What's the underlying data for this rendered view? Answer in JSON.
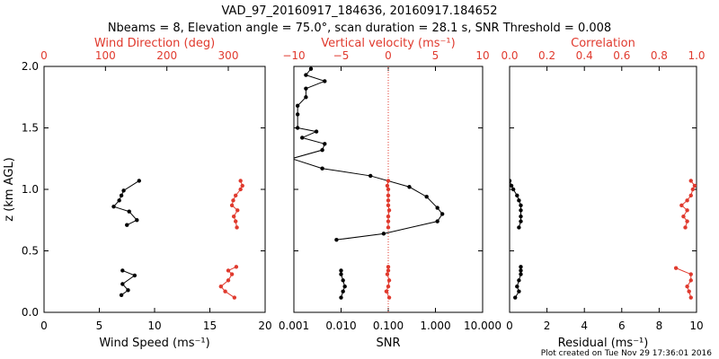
{
  "header": {
    "title_line1": "VAD_97_20160917_184636, 20160917.184652",
    "title_line2": "Nbeams = 8, Elevation angle = 75.0°, scan duration = 28.1 s, SNR Threshold = 0.008"
  },
  "footer": "Plot created on Tue Nov 29 17:36:01 2016",
  "colors": {
    "primary": "#000000",
    "secondary": "#e03a2e"
  },
  "chart_data": [
    {
      "type": "scatter",
      "ylabel": "z (km AGL)",
      "ylim": [
        0,
        2
      ],
      "yticks": [
        "0.0",
        "0.5",
        "1.0",
        "1.5",
        "2.0"
      ],
      "xlabel_bottom": "Wind Speed (ms⁻¹)",
      "xlim_bottom": [
        0,
        20
      ],
      "xticks_bottom": [
        "0",
        "5",
        "10",
        "15",
        "20"
      ],
      "xlabel_top": "Wind Direction (deg)",
      "xlim_top": [
        0,
        360
      ],
      "xticks_top": [
        "0",
        "100",
        "200",
        "300"
      ],
      "series": [
        {
          "axis": "bottom",
          "color": "#000000",
          "segments": [
            [
              [
                7.0,
                0.14
              ],
              [
                7.6,
                0.18
              ],
              [
                7.1,
                0.23
              ],
              [
                8.2,
                0.3
              ],
              [
                7.1,
                0.34
              ]
            ],
            [
              [
                7.5,
                0.71
              ],
              [
                8.4,
                0.75
              ],
              [
                7.7,
                0.82
              ],
              [
                6.3,
                0.86
              ],
              [
                6.8,
                0.91
              ],
              [
                7.0,
                0.95
              ],
              [
                7.2,
                0.99
              ],
              [
                8.6,
                1.07
              ]
            ]
          ]
        },
        {
          "axis": "top",
          "color": "#e03a2e",
          "segments": [
            [
              [
                310,
                0.12
              ],
              [
                295,
                0.17
              ],
              [
                288,
                0.21
              ],
              [
                300,
                0.26
              ],
              [
                306,
                0.31
              ],
              [
                300,
                0.34
              ],
              [
                313,
                0.37
              ]
            ],
            [
              [
                314,
                0.69
              ],
              [
                312,
                0.74
              ],
              [
                309,
                0.78
              ],
              [
                315,
                0.83
              ],
              [
                306,
                0.87
              ],
              [
                308,
                0.91
              ],
              [
                312,
                0.95
              ],
              [
                320,
                1.0
              ],
              [
                323,
                1.03
              ],
              [
                320,
                1.07
              ]
            ]
          ]
        }
      ]
    },
    {
      "type": "scatter",
      "xlabel_bottom": "SNR",
      "xscale_bottom": "log",
      "xlim_bottom": [
        0.001,
        10
      ],
      "xticks_bottom": [
        "0.001",
        "0.010",
        "0.100",
        "1.000",
        "10.000"
      ],
      "xlabel_top": "Vertical velocity (ms⁻¹)",
      "xlim_top": [
        -10,
        10
      ],
      "xticks_top": [
        "-10",
        "-5",
        "0",
        "5",
        "10"
      ],
      "vline_top": 0,
      "series": [
        {
          "axis": "bottom",
          "color": "#000000",
          "segments": [
            [
              [
                0.01,
                0.12
              ],
              [
                0.011,
                0.17
              ],
              [
                0.012,
                0.21
              ],
              [
                0.011,
                0.26
              ],
              [
                0.01,
                0.31
              ],
              [
                0.01,
                0.34
              ]
            ],
            [
              [
                0.008,
                0.59
              ],
              [
                0.08,
                0.64
              ],
              [
                1.1,
                0.74
              ],
              [
                1.4,
                0.8
              ],
              [
                1.1,
                0.85
              ],
              [
                0.65,
                0.94
              ],
              [
                0.28,
                1.02
              ],
              [
                0.042,
                1.11
              ],
              [
                0.004,
                1.17
              ],
              [
                0.0009,
                1.25
              ],
              [
                0.004,
                1.32
              ],
              [
                0.0045,
                1.37
              ],
              [
                0.0015,
                1.42
              ],
              [
                0.003,
                1.47
              ],
              [
                0.0012,
                1.5
              ],
              [
                0.0012,
                1.61
              ],
              [
                0.0012,
                1.68
              ],
              [
                0.0018,
                1.75
              ],
              [
                0.0018,
                1.82
              ],
              [
                0.0045,
                1.88
              ],
              [
                0.0018,
                1.93
              ],
              [
                0.0023,
                1.98
              ]
            ]
          ]
        },
        {
          "axis": "top",
          "color": "#e03a2e",
          "segments": [
            [
              [
                0.1,
                0.12
              ],
              [
                -0.2,
                0.17
              ],
              [
                0.0,
                0.21
              ],
              [
                0.1,
                0.26
              ],
              [
                -0.1,
                0.31
              ],
              [
                0.0,
                0.34
              ],
              [
                0.0,
                0.37
              ]
            ],
            [
              [
                0.0,
                0.69
              ],
              [
                0.0,
                0.74
              ],
              [
                0.0,
                0.78
              ],
              [
                0.1,
                0.83
              ],
              [
                0.0,
                0.87
              ],
              [
                0.0,
                0.91
              ],
              [
                0.0,
                0.95
              ],
              [
                0.0,
                1.0
              ],
              [
                -0.1,
                1.03
              ],
              [
                0.0,
                1.07
              ]
            ]
          ]
        }
      ]
    },
    {
      "type": "scatter",
      "xlabel_bottom": "Residual (ms⁻¹)",
      "xlim_bottom": [
        0,
        10
      ],
      "xticks_bottom": [
        "0",
        "2",
        "4",
        "6",
        "8",
        "10"
      ],
      "xlabel_top": "Correlation",
      "xlim_top": [
        0,
        1
      ],
      "xticks_top": [
        "0.0",
        "0.2",
        "0.4",
        "0.6",
        "0.8",
        "1.0"
      ],
      "series": [
        {
          "axis": "bottom",
          "color": "#000000",
          "segments": [
            [
              [
                0.3,
                0.12
              ],
              [
                0.5,
                0.17
              ],
              [
                0.4,
                0.21
              ],
              [
                0.5,
                0.26
              ],
              [
                0.6,
                0.31
              ],
              [
                0.6,
                0.34
              ],
              [
                0.6,
                0.37
              ]
            ],
            [
              [
                0.5,
                0.69
              ],
              [
                0.6,
                0.74
              ],
              [
                0.6,
                0.78
              ],
              [
                0.6,
                0.83
              ],
              [
                0.6,
                0.87
              ],
              [
                0.5,
                0.91
              ],
              [
                0.4,
                0.95
              ],
              [
                0.2,
                1.0
              ],
              [
                0.1,
                1.03
              ],
              [
                0.0,
                1.07
              ]
            ]
          ]
        },
        {
          "axis": "top",
          "color": "#e03a2e",
          "segments": [
            [
              [
                0.97,
                0.12
              ],
              [
                0.96,
                0.17
              ],
              [
                0.95,
                0.21
              ],
              [
                0.97,
                0.26
              ],
              [
                0.97,
                0.31
              ],
              [
                0.89,
                0.36
              ]
            ],
            [
              [
                0.94,
                0.69
              ],
              [
                0.95,
                0.74
              ],
              [
                0.93,
                0.78
              ],
              [
                0.95,
                0.83
              ],
              [
                0.92,
                0.87
              ],
              [
                0.95,
                0.91
              ],
              [
                0.97,
                0.95
              ],
              [
                0.98,
                1.0
              ],
              [
                0.99,
                1.03
              ],
              [
                0.97,
                1.07
              ]
            ]
          ]
        }
      ]
    }
  ]
}
